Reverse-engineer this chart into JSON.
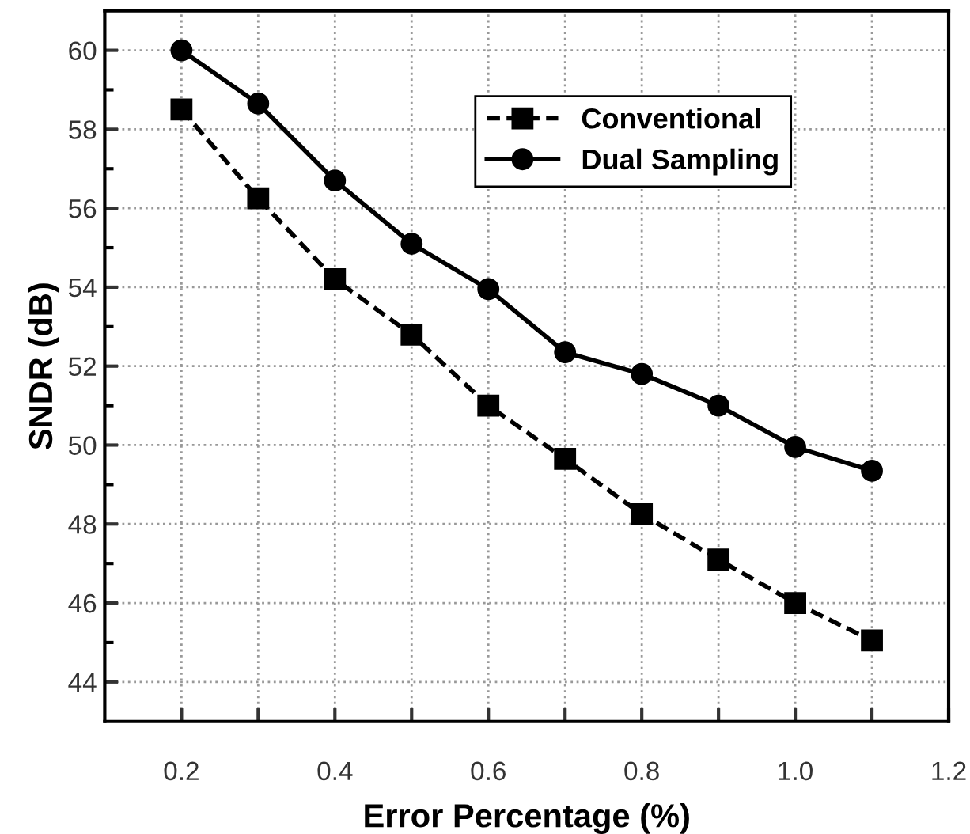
{
  "chart_data": {
    "type": "line",
    "xlabel": "Error Percentage (%)",
    "ylabel": "SNDR (dB)",
    "x": [
      0.2,
      0.3,
      0.4,
      0.5,
      0.6,
      0.7,
      0.8,
      0.9,
      1.0,
      1.1
    ],
    "series": [
      {
        "name": "Conventional",
        "color": "#000000",
        "marker": "square",
        "line_style": "dashed",
        "values": [
          58.5,
          56.25,
          54.2,
          52.8,
          51.0,
          49.65,
          48.25,
          47.1,
          46.0,
          45.05
        ]
      },
      {
        "name": "Dual Sampling",
        "color": "#000000",
        "marker": "circle",
        "line_style": "solid",
        "values": [
          60.0,
          58.65,
          56.7,
          55.1,
          53.95,
          52.35,
          51.8,
          51.0,
          49.95,
          49.35
        ]
      }
    ],
    "xlim": [
      0.1,
      1.2
    ],
    "xticks": [
      {
        "value": 0.2,
        "label": "0.2"
      },
      {
        "value": 0.3,
        "label": null
      },
      {
        "value": 0.4,
        "label": "0.4"
      },
      {
        "value": 0.5,
        "label": null
      },
      {
        "value": 0.6,
        "label": "0.6"
      },
      {
        "value": 0.7,
        "label": null
      },
      {
        "value": 0.8,
        "label": "0.8"
      },
      {
        "value": 0.9,
        "label": null
      },
      {
        "value": 1.0,
        "label": "1.0"
      },
      {
        "value": 1.1,
        "label": null
      },
      {
        "value": 1.2,
        "label": "1.2"
      }
    ],
    "ylim": [
      43,
      61
    ],
    "yticks": [
      44,
      {
        "value": 45,
        "label": null
      },
      46,
      {
        "value": 47,
        "label": null
      },
      48,
      {
        "value": 49,
        "label": null
      },
      50,
      {
        "value": 51,
        "label": null
      },
      52,
      {
        "value": 53,
        "label": null
      },
      54,
      {
        "value": 55,
        "label": null
      },
      56,
      {
        "value": 57,
        "label": null
      },
      58,
      {
        "value": 59,
        "label": null
      },
      60
    ],
    "grid": true,
    "legend": "top right"
  }
}
